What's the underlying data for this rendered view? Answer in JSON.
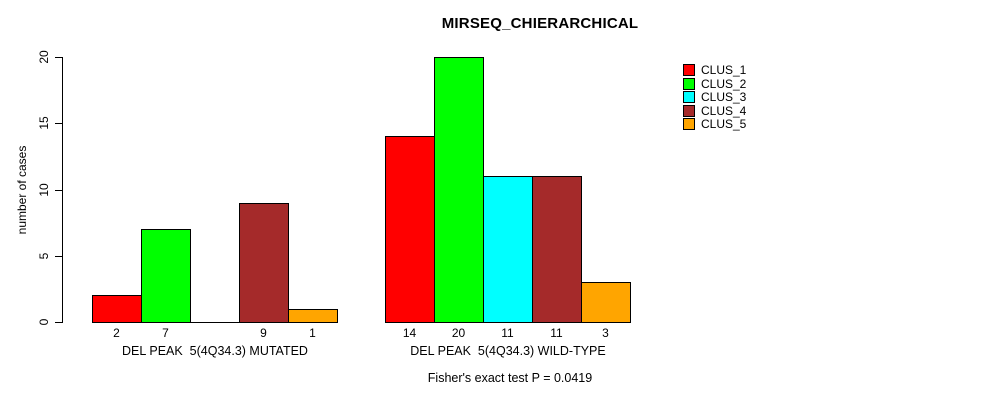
{
  "chart_data": {
    "type": "bar",
    "title": "MIRSEQ_CHIERARCHICAL",
    "ylabel": "number of cases",
    "xlabel": "",
    "ylim": [
      0,
      20
    ],
    "yticks": [
      0,
      5,
      10,
      15,
      20
    ],
    "grid": false,
    "legend_position": "right",
    "categories": [
      "DEL PEAK  5(4Q34.3) MUTATED",
      "DEL PEAK  5(4Q34.3) WILD-TYPE"
    ],
    "series": [
      {
        "name": "CLUS_1",
        "color": "#FF0000",
        "values": [
          2,
          14
        ]
      },
      {
        "name": "CLUS_2",
        "color": "#00FF00",
        "values": [
          7,
          20
        ]
      },
      {
        "name": "CLUS_3",
        "color": "#00FFFF",
        "values": [
          0,
          11
        ]
      },
      {
        "name": "CLUS_4",
        "color": "#A52A2A",
        "values": [
          9,
          11
        ]
      },
      {
        "name": "CLUS_5",
        "color": "#FFA500",
        "values": [
          1,
          3
        ]
      }
    ],
    "bar_value_labels": [
      [
        2,
        7,
        null,
        9,
        1
      ],
      [
        14,
        20,
        11,
        11,
        3
      ]
    ],
    "annotation": "Fisher's exact test P = 0.0419",
    "colors": {
      "axis": "#000000",
      "text": "#000000",
      "background": "#FFFFFF"
    }
  }
}
